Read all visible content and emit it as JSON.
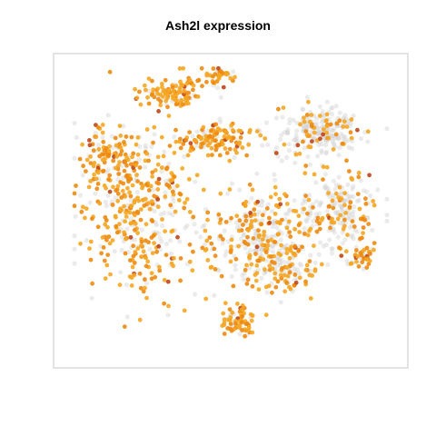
{
  "chart_data": {
    "type": "scatter",
    "title": "Ash2l expression",
    "xlabel": "",
    "ylabel": "",
    "axes_visible": false,
    "legend": "none",
    "xlim": [
      -45,
      45
    ],
    "ylim": [
      -45,
      45
    ],
    "colors": {
      "not_expressed": "#d3d3d3",
      "low": "#f5a623",
      "mid": "#ee8a10",
      "high": "#c0461a",
      "frame": "#c8c8c8"
    },
    "series": [
      {
        "values_description": "points colored by expression level",
        "clusters": [
          {
            "cx": -16,
            "cy": 36,
            "sx": 8,
            "sy": 4,
            "n": 110,
            "expr_frac": 0.8
          },
          {
            "cx": -3,
            "cy": 41,
            "sx": 4,
            "sy": 2.5,
            "n": 40,
            "expr_frac": 0.8
          },
          {
            "cx": -4,
            "cy": 22,
            "sx": 8,
            "sy": 4,
            "n": 130,
            "expr_frac": 0.8
          },
          {
            "cx": -25,
            "cy": 0,
            "sx": 14,
            "sy": 20,
            "n": 420,
            "expr_frac": 0.72
          },
          {
            "cx": -33,
            "cy": 16,
            "sx": 6,
            "sy": 8,
            "n": 90,
            "expr_frac": 0.8
          },
          {
            "cx": 8,
            "cy": -8,
            "sx": 12,
            "sy": 12,
            "n": 330,
            "expr_frac": 0.5
          },
          {
            "cx": 24,
            "cy": 24,
            "sx": 9,
            "sy": 6,
            "n": 240,
            "expr_frac": 0.25
          },
          {
            "cx": 30,
            "cy": 0,
            "sx": 9,
            "sy": 10,
            "n": 220,
            "expr_frac": 0.4
          },
          {
            "cx": 2,
            "cy": -33,
            "sx": 4,
            "sy": 4,
            "n": 70,
            "expr_frac": 0.8
          },
          {
            "cx": 15,
            "cy": -18,
            "sx": 6,
            "sy": 5,
            "n": 90,
            "expr_frac": 0.5
          },
          {
            "cx": 36,
            "cy": -14,
            "sx": 3,
            "sy": 3,
            "n": 40,
            "expr_frac": 0.5
          }
        ]
      }
    ]
  }
}
